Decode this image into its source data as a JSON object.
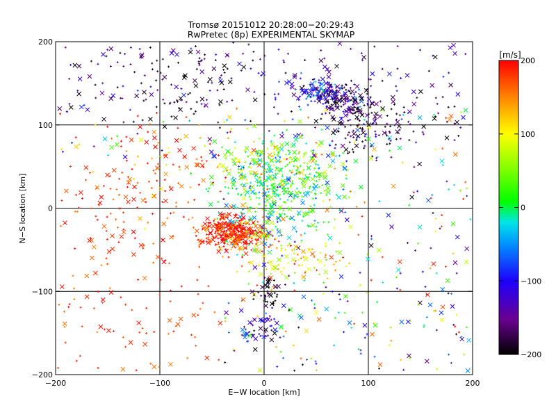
{
  "chart_data": {
    "type": "scatter",
    "title": "Tromsø 20151012 20:28:00−20:29:43",
    "subtitle": "RwPretec (8p) EXPERIMENTAL SKYMAP",
    "xlabel": "E−W location [km]",
    "ylabel": "N−S location [km]",
    "xlim": [
      -200,
      200
    ],
    "ylim": [
      -200,
      200
    ],
    "xticks": [
      -200,
      -100,
      0,
      100,
      200
    ],
    "yticks": [
      -200,
      -100,
      0,
      100,
      200
    ],
    "x_tick_labels": [
      "−200",
      "−100",
      "0",
      "100",
      "200"
    ],
    "y_tick_labels": [
      "−200",
      "−100",
      "0",
      "100",
      "200"
    ],
    "grid": true,
    "markers": [
      "x",
      "+"
    ],
    "colorbar": {
      "label": "[m/s]",
      "range": [
        -200,
        200
      ],
      "ticks": [
        -200,
        -100,
        0,
        100,
        200
      ],
      "tick_labels": [
        "−200",
        "−100",
        "0",
        "100",
        "200"
      ],
      "colormap": "rainbow (black → purple → blue → cyan → green → yellow → red)"
    },
    "clusters": [
      {
        "x": -35,
        "y": -25,
        "sx": 14,
        "sy": 10,
        "v": 200,
        "n": 220
      },
      {
        "x": -18,
        "y": -35,
        "sx": 15,
        "sy": 8,
        "v": 175,
        "n": 140
      },
      {
        "x": 12,
        "y": 15,
        "sx": 28,
        "sy": 30,
        "v": 5,
        "n": 340
      },
      {
        "x": 30,
        "y": 45,
        "sx": 25,
        "sy": 18,
        "v": 30,
        "n": 120
      },
      {
        "x": -10,
        "y": 55,
        "sx": 30,
        "sy": 18,
        "v": 90,
        "n": 90
      },
      {
        "x": 55,
        "y": 140,
        "sx": 16,
        "sy": 8,
        "v": -110,
        "n": 170
      },
      {
        "x": 78,
        "y": 125,
        "sx": 12,
        "sy": 10,
        "v": -170,
        "n": 110
      },
      {
        "x": 95,
        "y": 95,
        "sx": 18,
        "sy": 15,
        "v": -185,
        "n": 90
      },
      {
        "x": 5,
        "y": -105,
        "sx": 8,
        "sy": 10,
        "v": -200,
        "n": 40
      },
      {
        "x": 0,
        "y": -145,
        "sx": 12,
        "sy": 8,
        "v": -130,
        "n": 50
      },
      {
        "x": -80,
        "y": 150,
        "sx": 35,
        "sy": 25,
        "v": -200,
        "n": 90
      },
      {
        "x": -110,
        "y": 40,
        "sx": 35,
        "sy": 40,
        "v": 190,
        "n": 100
      },
      {
        "x": 25,
        "y": -60,
        "sx": 20,
        "sy": 15,
        "v": 120,
        "n": 80
      },
      {
        "x": 150,
        "y": 110,
        "sx": 25,
        "sy": 20,
        "v": -190,
        "n": 40
      }
    ],
    "background_points": 700
  }
}
